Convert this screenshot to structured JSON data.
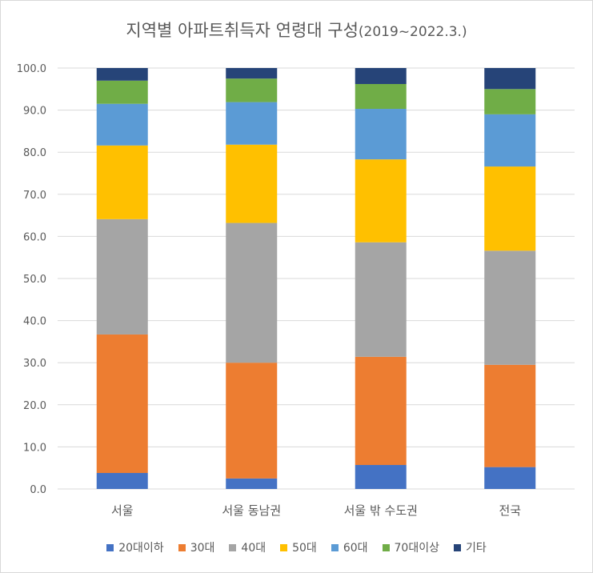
{
  "chart_data": {
    "type": "bar",
    "stacked": true,
    "title": "지역별 아파트취득자 연령대 구성",
    "subtitle": "(2019~2022.3.)",
    "categories": [
      "서울",
      "서울 동남권",
      "서울 밖 수도권",
      "전국"
    ],
    "ylim": [
      0,
      100
    ],
    "yticks": [
      "0.0",
      "10.0",
      "20.0",
      "30.0",
      "40.0",
      "50.0",
      "60.0",
      "70.0",
      "80.0",
      "90.0",
      "100.0"
    ],
    "grid": true,
    "legend_position": "bottom",
    "series": [
      {
        "name": "20대이하",
        "color": "#4472c4",
        "values": [
          3.8,
          2.5,
          5.7,
          5.2
        ]
      },
      {
        "name": "30대",
        "color": "#ed7d31",
        "values": [
          32.9,
          27.5,
          25.7,
          24.3
        ]
      },
      {
        "name": "40대",
        "color": "#a5a5a5",
        "values": [
          27.4,
          33.2,
          27.2,
          27.1
        ]
      },
      {
        "name": "50대",
        "color": "#ffc000",
        "values": [
          17.5,
          18.6,
          19.7,
          20.0
        ]
      },
      {
        "name": "60대",
        "color": "#5b9bd5",
        "values": [
          9.9,
          10.1,
          12.0,
          12.4
        ]
      },
      {
        "name": "70대이상",
        "color": "#70ad47",
        "values": [
          5.5,
          5.6,
          5.9,
          6.0
        ]
      },
      {
        "name": "기타",
        "color": "#264478",
        "values": [
          3.0,
          2.5,
          3.8,
          5.0
        ]
      }
    ]
  }
}
